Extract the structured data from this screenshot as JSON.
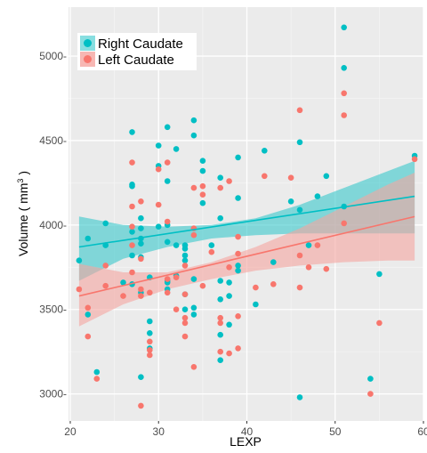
{
  "chart_data": {
    "type": "scatter",
    "title": "",
    "xlabel": "LEXP",
    "ylabel_main": "Volume ( mm",
    "ylabel_sup": "3",
    "ylabel_close": " )",
    "xlim": [
      19.8,
      60
    ],
    "ylim": [
      2840,
      5290
    ],
    "x_ticks": [
      20,
      30,
      40,
      50,
      60
    ],
    "x_tick_labels": [
      "20",
      "30",
      "40",
      "50",
      "60"
    ],
    "y_ticks": [
      3000,
      3500,
      4000,
      4500,
      5000
    ],
    "y_tick_labels": [
      "3000-",
      "3500-",
      "4000-",
      "4500-",
      "5000-"
    ],
    "grid": true,
    "legend_position": "top-left",
    "series": [
      {
        "name": "Right Caudate",
        "color": "#00BFC4",
        "band_color": "#39C8CC",
        "fit": {
          "x": [
            21,
            59
          ],
          "y": [
            3870,
            4170
          ]
        },
        "band": {
          "x": [
            21,
            26,
            31,
            36,
            41,
            46,
            51,
            56,
            59
          ],
          "lower": [
            3670,
            3800,
            3870,
            3920,
            3940,
            3950,
            3950,
            3950,
            3950
          ],
          "upper": [
            4050,
            4000,
            3990,
            4000,
            4040,
            4120,
            4220,
            4320,
            4380
          ]
        },
        "points": [
          [
            21,
            3790
          ],
          [
            22,
            3920
          ],
          [
            22,
            3470
          ],
          [
            23,
            3130
          ],
          [
            24,
            4010
          ],
          [
            24,
            3880
          ],
          [
            26,
            3660
          ],
          [
            27,
            4550
          ],
          [
            27,
            4240
          ],
          [
            27,
            4230
          ],
          [
            27,
            3960
          ],
          [
            27,
            3820
          ],
          [
            27,
            3650
          ],
          [
            28,
            4040
          ],
          [
            28,
            3980
          ],
          [
            28,
            3920
          ],
          [
            28,
            3890
          ],
          [
            28,
            3810
          ],
          [
            28,
            3600
          ],
          [
            28,
            3100
          ],
          [
            29,
            3430
          ],
          [
            29,
            3360
          ],
          [
            29,
            3270
          ],
          [
            29,
            3690
          ],
          [
            30,
            4470
          ],
          [
            30,
            4350
          ],
          [
            30,
            3990
          ],
          [
            31,
            4580
          ],
          [
            31,
            4260
          ],
          [
            31,
            4000
          ],
          [
            31,
            3900
          ],
          [
            31,
            3670
          ],
          [
            31,
            3660
          ],
          [
            31,
            3620
          ],
          [
            32,
            4450
          ],
          [
            32,
            3880
          ],
          [
            32,
            3700
          ],
          [
            33,
            3880
          ],
          [
            33,
            3860
          ],
          [
            33,
            3820
          ],
          [
            33,
            3790
          ],
          [
            33,
            3590
          ],
          [
            33,
            3500
          ],
          [
            34,
            4620
          ],
          [
            34,
            4530
          ],
          [
            34,
            3680
          ],
          [
            34,
            3510
          ],
          [
            34,
            3470
          ],
          [
            35,
            4380
          ],
          [
            35,
            4320
          ],
          [
            35,
            4130
          ],
          [
            36,
            3880
          ],
          [
            37,
            4280
          ],
          [
            37,
            4040
          ],
          [
            37,
            3670
          ],
          [
            37,
            3560
          ],
          [
            37,
            3350
          ],
          [
            37,
            3200
          ],
          [
            38,
            3660
          ],
          [
            38,
            3580
          ],
          [
            38,
            3410
          ],
          [
            39,
            4400
          ],
          [
            39,
            4160
          ],
          [
            39,
            3760
          ],
          [
            39,
            3730
          ],
          [
            41,
            3530
          ],
          [
            42,
            4440
          ],
          [
            43,
            3780
          ],
          [
            45,
            4140
          ],
          [
            46,
            4490
          ],
          [
            46,
            4090
          ],
          [
            46,
            2980
          ],
          [
            47,
            3880
          ],
          [
            48,
            4170
          ],
          [
            49,
            4290
          ],
          [
            51,
            5170
          ],
          [
            51,
            4930
          ],
          [
            51,
            4110
          ],
          [
            54,
            3090
          ],
          [
            55,
            3710
          ],
          [
            59,
            4410
          ]
        ]
      },
      {
        "name": "Left Caudate",
        "color": "#F8766D",
        "band_color": "#F5A5A0",
        "fit": {
          "x": [
            21,
            59
          ],
          "y": [
            3580,
            4050
          ]
        },
        "band": {
          "x": [
            21,
            26,
            31,
            36,
            41,
            46,
            51,
            56,
            59
          ],
          "lower": [
            3400,
            3530,
            3620,
            3680,
            3730,
            3760,
            3780,
            3790,
            3790
          ],
          "upper": [
            3770,
            3720,
            3720,
            3780,
            3870,
            3980,
            4110,
            4240,
            4310
          ]
        },
        "points": [
          [
            21,
            3620
          ],
          [
            22,
            3510
          ],
          [
            22,
            3340
          ],
          [
            23,
            3090
          ],
          [
            24,
            3760
          ],
          [
            24,
            3640
          ],
          [
            26,
            3580
          ],
          [
            27,
            4370
          ],
          [
            27,
            4110
          ],
          [
            27,
            3990
          ],
          [
            27,
            3880
          ],
          [
            27,
            3720
          ],
          [
            28,
            4140
          ],
          [
            28,
            3800
          ],
          [
            28,
            3620
          ],
          [
            28,
            3580
          ],
          [
            28,
            2930
          ],
          [
            29,
            3310
          ],
          [
            29,
            3260
          ],
          [
            29,
            3230
          ],
          [
            29,
            3600
          ],
          [
            30,
            4120
          ],
          [
            30,
            4330
          ],
          [
            31,
            4370
          ],
          [
            31,
            4020
          ],
          [
            31,
            3680
          ],
          [
            31,
            3600
          ],
          [
            32,
            3690
          ],
          [
            32,
            3500
          ],
          [
            33,
            3760
          ],
          [
            33,
            3590
          ],
          [
            33,
            3450
          ],
          [
            33,
            3420
          ],
          [
            33,
            3340
          ],
          [
            34,
            4220
          ],
          [
            34,
            3980
          ],
          [
            34,
            3940
          ],
          [
            34,
            3160
          ],
          [
            35,
            4230
          ],
          [
            35,
            4180
          ],
          [
            35,
            3640
          ],
          [
            36,
            3840
          ],
          [
            37,
            4220
          ],
          [
            37,
            3450
          ],
          [
            37,
            3420
          ],
          [
            37,
            3250
          ],
          [
            38,
            4260
          ],
          [
            38,
            3750
          ],
          [
            38,
            3240
          ],
          [
            39,
            3930
          ],
          [
            39,
            3830
          ],
          [
            39,
            3460
          ],
          [
            39,
            3270
          ],
          [
            41,
            3630
          ],
          [
            42,
            4290
          ],
          [
            43,
            3650
          ],
          [
            45,
            4280
          ],
          [
            46,
            4680
          ],
          [
            46,
            3820
          ],
          [
            46,
            3630
          ],
          [
            47,
            3750
          ],
          [
            48,
            3880
          ],
          [
            49,
            3740
          ],
          [
            51,
            4780
          ],
          [
            51,
            4650
          ],
          [
            51,
            4010
          ],
          [
            54,
            3000
          ],
          [
            55,
            3420
          ],
          [
            59,
            4390
          ]
        ]
      }
    ]
  }
}
